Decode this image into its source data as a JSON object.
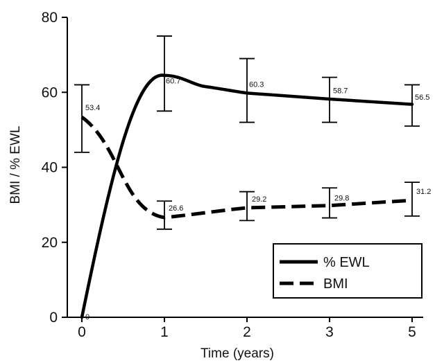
{
  "chart_data": {
    "type": "line",
    "xlabel": "Time (years)",
    "ylabel": "BMI / % EWL",
    "ylim": [
      0,
      80
    ],
    "x_ticks": [
      "0",
      "1",
      "2",
      "3",
      "5"
    ],
    "y_ticks": [
      "0",
      "20",
      "40",
      "60",
      "80"
    ],
    "legend_position": "bottom-right",
    "series": [
      {
        "name": "% EWL",
        "line_style": "solid",
        "color": "#000000",
        "x": [
          "0",
          "1",
          "2",
          "3",
          "5"
        ],
        "values": [
          0,
          60.7,
          60.3,
          58.7,
          56.5
        ],
        "value_labels": [
          "0",
          "60.7",
          "60.3",
          "58.7",
          "56.5"
        ],
        "error_low": [
          null,
          55,
          52,
          52,
          51
        ],
        "error_high": [
          null,
          75,
          69,
          64,
          62
        ]
      },
      {
        "name": "BMI",
        "line_style": "dashed",
        "color": "#000000",
        "x": [
          "0",
          "1",
          "2",
          "3",
          "5"
        ],
        "values": [
          53.4,
          26.6,
          29.2,
          29.8,
          31.2
        ],
        "value_labels": [
          "53.4",
          "26.6",
          "29.2",
          "29.8",
          "31.2"
        ],
        "error_low": [
          44,
          23.5,
          25.8,
          26.5,
          27
        ],
        "error_high": [
          62,
          31,
          33.5,
          34.5,
          36
        ]
      }
    ]
  }
}
